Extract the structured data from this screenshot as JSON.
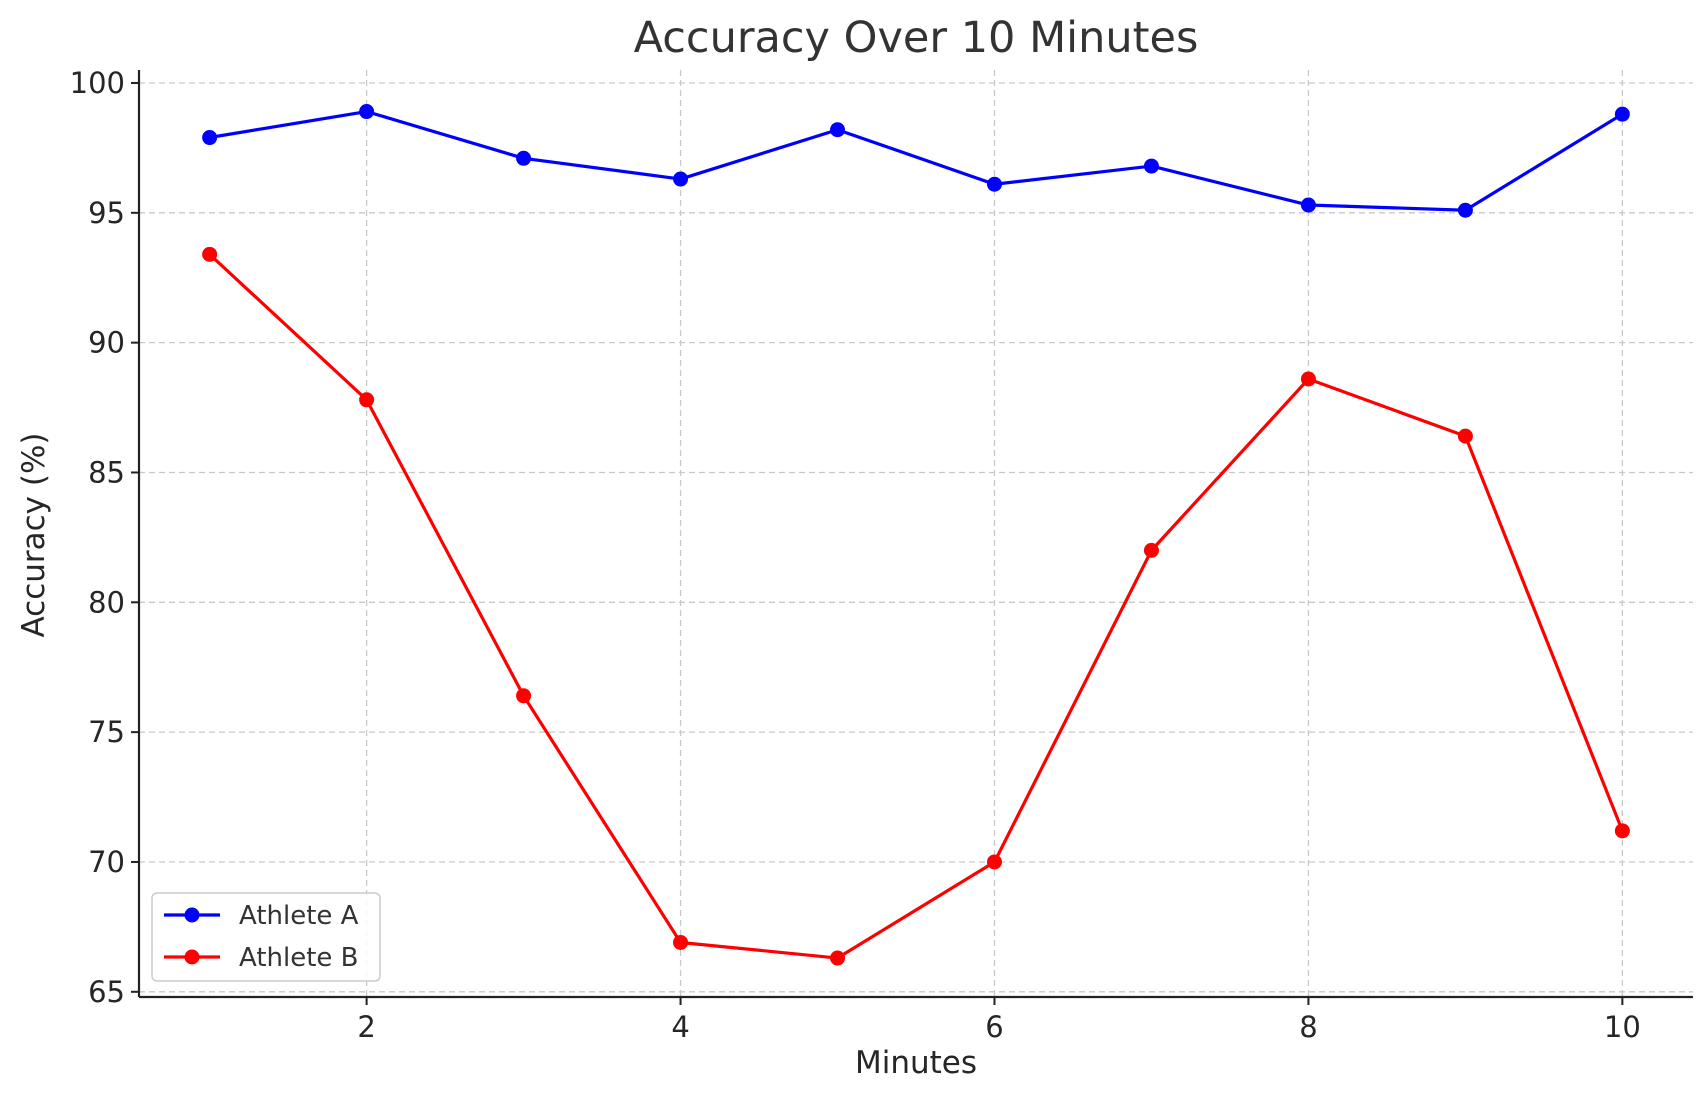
{
  "chart_data": {
    "type": "line",
    "title": "Accuracy Over 10 Minutes",
    "xlabel": "Minutes",
    "ylabel": "Accuracy (%)",
    "x": [
      1,
      2,
      3,
      4,
      5,
      6,
      7,
      8,
      9,
      10
    ],
    "xlim": [
      0.55,
      10.45
    ],
    "ylim": [
      64.8,
      100.5
    ],
    "xticks": [
      2,
      4,
      6,
      8,
      10
    ],
    "yticks": [
      65,
      70,
      75,
      80,
      85,
      90,
      95,
      100
    ],
    "grid": true,
    "legend_position": "lower-left",
    "series": [
      {
        "name": "Athlete A",
        "color": "#0000ff",
        "values": [
          97.9,
          98.9,
          97.1,
          96.3,
          98.2,
          96.1,
          96.8,
          95.3,
          95.1,
          98.8
        ]
      },
      {
        "name": "Athlete B",
        "color": "#ff0000",
        "values": [
          93.4,
          87.8,
          76.4,
          66.9,
          66.3,
          70.0,
          82.0,
          88.6,
          86.4,
          71.2
        ]
      }
    ]
  }
}
